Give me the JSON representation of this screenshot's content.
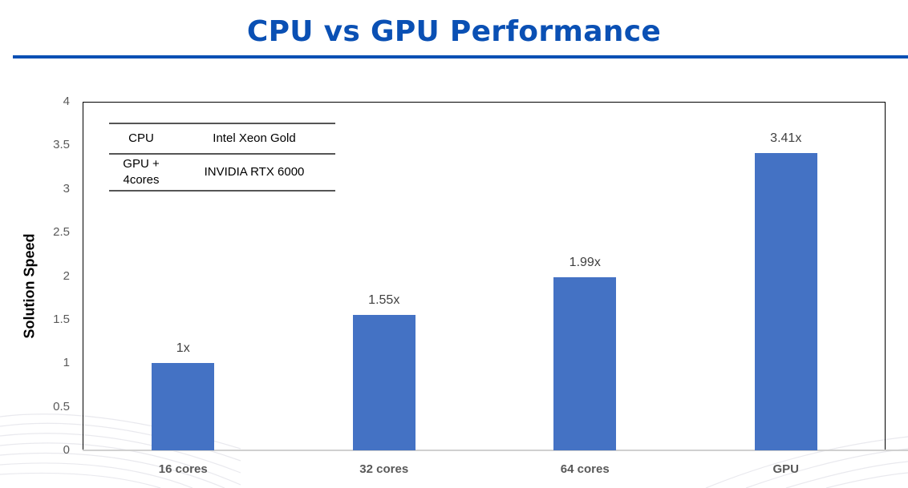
{
  "header": {
    "title": "CPU vs GPU Performance"
  },
  "spec_table": {
    "rows": [
      {
        "key": "CPU",
        "value": "Intel Xeon Gold"
      },
      {
        "key": "GPU + 4cores",
        "value": "INVIDIA RTX 6000"
      }
    ]
  },
  "colors": {
    "title": "#0a50b4",
    "bar": "#4472c4",
    "axis_text": "#595959"
  },
  "chart_data": {
    "type": "bar",
    "title": "CPU vs GPU Performance",
    "xlabel": "",
    "ylabel": "Solution Speed",
    "categories": [
      "16 cores",
      "32 cores",
      "64 cores",
      "GPU"
    ],
    "values": [
      1.0,
      1.55,
      1.99,
      3.41
    ],
    "data_labels": [
      "1x",
      "1.55x",
      "1.99x",
      "3.41x"
    ],
    "ylim": [
      0,
      4
    ],
    "yticks": [
      "0",
      "0.5",
      "1",
      "1.5",
      "2",
      "2.5",
      "3",
      "3.5",
      "4"
    ],
    "grid": false,
    "legend": null,
    "annotations": [
      {
        "type": "table",
        "rows": [
          [
            "CPU",
            "Intel Xeon Gold"
          ],
          [
            "GPU + 4cores",
            "INVIDIA RTX 6000"
          ]
        ]
      }
    ]
  }
}
